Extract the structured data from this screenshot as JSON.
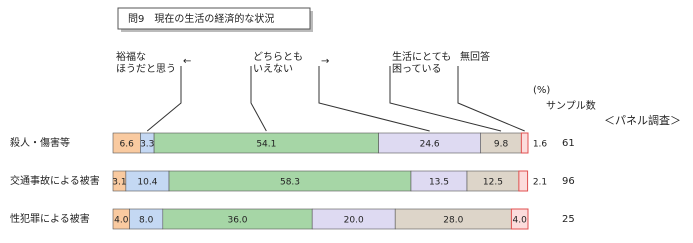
{
  "chart_data": {
    "type": "stacked_bar_horizontal",
    "title": "問9　現在の生活の経済的な状況",
    "unit_label": "(%)",
    "sample_size_label": "サンプル数",
    "annotation": "＜パネル調査＞",
    "categories": [
      "殺人・傷害等",
      "交通事故による被害",
      "性犯罪による被害"
    ],
    "sample_sizes": [
      61,
      96,
      25
    ],
    "xlim": [
      0,
      100
    ],
    "series": [
      {
        "name": "裕福な\nほうだと思う",
        "color": "#f9caa0",
        "values": [
          6.6,
          3.1,
          4.0
        ],
        "value_labels": [
          "6.6",
          "3.1",
          "4.0"
        ]
      },
      {
        "name": "←",
        "color": "#c4d8f3",
        "values": [
          3.3,
          10.4,
          8.0
        ],
        "value_labels": [
          "3.3",
          "10.4",
          "8.0"
        ]
      },
      {
        "name": "どちらとも\nいえない",
        "color": "#a6d6a6",
        "values": [
          54.1,
          58.3,
          36.0
        ],
        "value_labels": [
          "54.1",
          "58.3",
          "36.0"
        ]
      },
      {
        "name": "→",
        "color": "#dedaf2",
        "values": [
          24.6,
          13.5,
          20.0
        ],
        "value_labels": [
          "24.6",
          "13.5",
          "20.0"
        ]
      },
      {
        "name": "生活にとても\n困っている",
        "color": "#ddd5c9",
        "values": [
          9.8,
          12.5,
          28.0
        ],
        "value_labels": [
          "9.8",
          "12.5",
          "28.0"
        ]
      },
      {
        "name": "無回答",
        "color": "#fcdcdc",
        "values": [
          1.6,
          2.1,
          4.0
        ],
        "value_labels": [
          "1.6",
          "2.1",
          "4.0"
        ]
      }
    ]
  }
}
